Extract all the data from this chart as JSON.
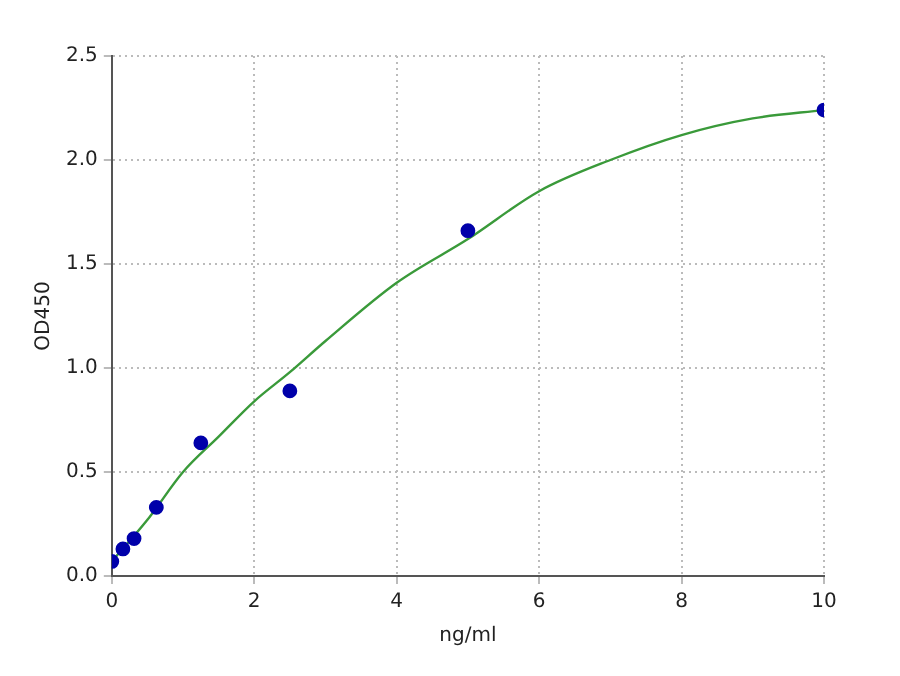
{
  "chart_data": {
    "type": "scatter",
    "xlabel": "ng/ml",
    "ylabel": "OD450",
    "series": [
      {
        "color": "#0000aa",
        "x": [
          0,
          0.156,
          0.3125,
          0.625,
          1.25,
          2.5,
          5,
          10
        ],
        "values": [
          0.07,
          0.13,
          0.18,
          0.33,
          0.64,
          0.89,
          1.66,
          2.24
        ]
      },
      {
        "type": "line",
        "color": "#3a9a3a",
        "marker": "none",
        "x": [
          0,
          0.5,
          1,
          1.5,
          2,
          2.5,
          3,
          4,
          5,
          6,
          7,
          8,
          9,
          10
        ],
        "values": [
          0.07,
          0.27,
          0.5,
          0.67,
          0.84,
          0.98,
          1.13,
          1.41,
          1.62,
          1.85,
          2.0,
          2.12,
          2.2,
          2.24
        ]
      }
    ],
    "xlim": [
      0,
      10
    ],
    "xticks": [
      0,
      2,
      4,
      6,
      8,
      10
    ],
    "ylim": [
      0,
      2.5
    ],
    "yticks": [
      {
        "value": 0,
        "label": "0.0"
      },
      0.5,
      {
        "value": 1,
        "label": "1.0"
      },
      1.5,
      {
        "value": 2,
        "label": "2.0"
      },
      2.5
    ],
    "grid": true,
    "marker": "circle",
    "legend": false
  }
}
